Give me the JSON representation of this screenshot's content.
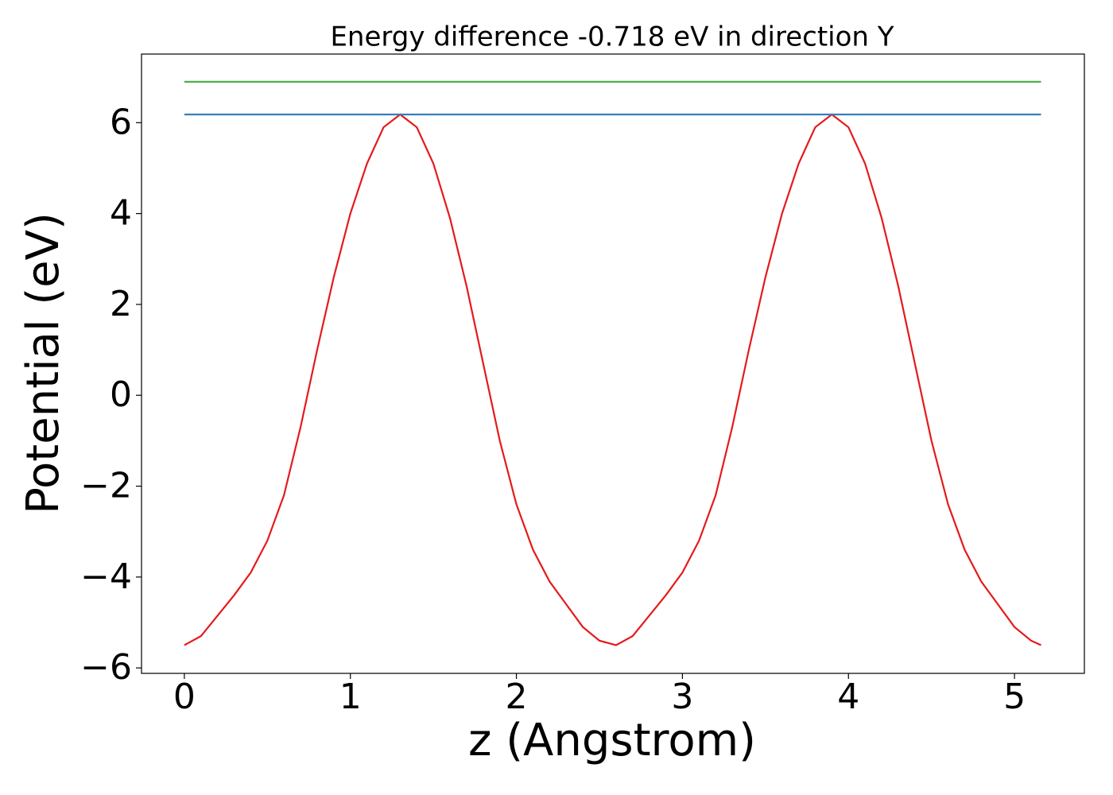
{
  "chart_data": {
    "type": "line",
    "title": "Energy difference -0.718 eV in direction Y",
    "xlabel": "z (Angstrom)",
    "ylabel": "Potential (eV)",
    "series": [
      {
        "color": "#e41a1c",
        "x": [
          0,
          0.1,
          0.2,
          0.3,
          0.4,
          0.5,
          0.6,
          0.7,
          0.8,
          0.9,
          1.0,
          1.1,
          1.2,
          1.3,
          1.4,
          1.5,
          1.6,
          1.7,
          1.8,
          1.9,
          2.0,
          2.1,
          2.2,
          2.3,
          2.4,
          2.5,
          2.6,
          2.7,
          2.8,
          2.9,
          3.0,
          3.1,
          3.2,
          3.3,
          3.4,
          3.5,
          3.6,
          3.7,
          3.8,
          3.9,
          4.0,
          4.1,
          4.2,
          4.3,
          4.4,
          4.5,
          4.6,
          4.7,
          4.8,
          4.9,
          5.0,
          5.1,
          5.16
        ],
        "values": [
          -5.5,
          -5.3,
          -4.85,
          -4.4,
          -3.9,
          -3.2,
          -2.2,
          -0.7,
          1.0,
          2.6,
          4.0,
          5.1,
          5.9,
          6.18,
          5.9,
          5.1,
          3.9,
          2.4,
          0.7,
          -1.0,
          -2.4,
          -3.4,
          -4.1,
          -4.6,
          -5.1,
          -5.4,
          -5.5,
          -5.3,
          -4.85,
          -4.4,
          -3.9,
          -3.2,
          -2.2,
          -0.7,
          1.0,
          2.6,
          4.0,
          5.1,
          5.9,
          6.18,
          5.9,
          5.1,
          3.9,
          2.4,
          0.7,
          -1.0,
          -2.4,
          -3.4,
          -4.1,
          -4.6,
          -5.1,
          -5.4,
          -5.5
        ]
      },
      {
        "color": "#377eb8",
        "x": [
          0,
          5.16
        ],
        "values": [
          6.18,
          6.18
        ]
      },
      {
        "color": "#4daf4a",
        "x": [
          0,
          5.16
        ],
        "values": [
          6.9,
          6.9
        ]
      }
    ],
    "xlim": [
      -0.258,
      5.421
    ],
    "ylim": [
      -6.12,
      7.51
    ],
    "xticks": [
      0,
      1,
      2,
      3,
      4,
      5
    ],
    "yticks": [
      {
        "value": -6,
        "label": "−6"
      },
      {
        "value": -4,
        "label": "−4"
      },
      {
        "value": -2,
        "label": "−2"
      },
      0,
      2,
      4,
      6
    ],
    "grid": false
  }
}
